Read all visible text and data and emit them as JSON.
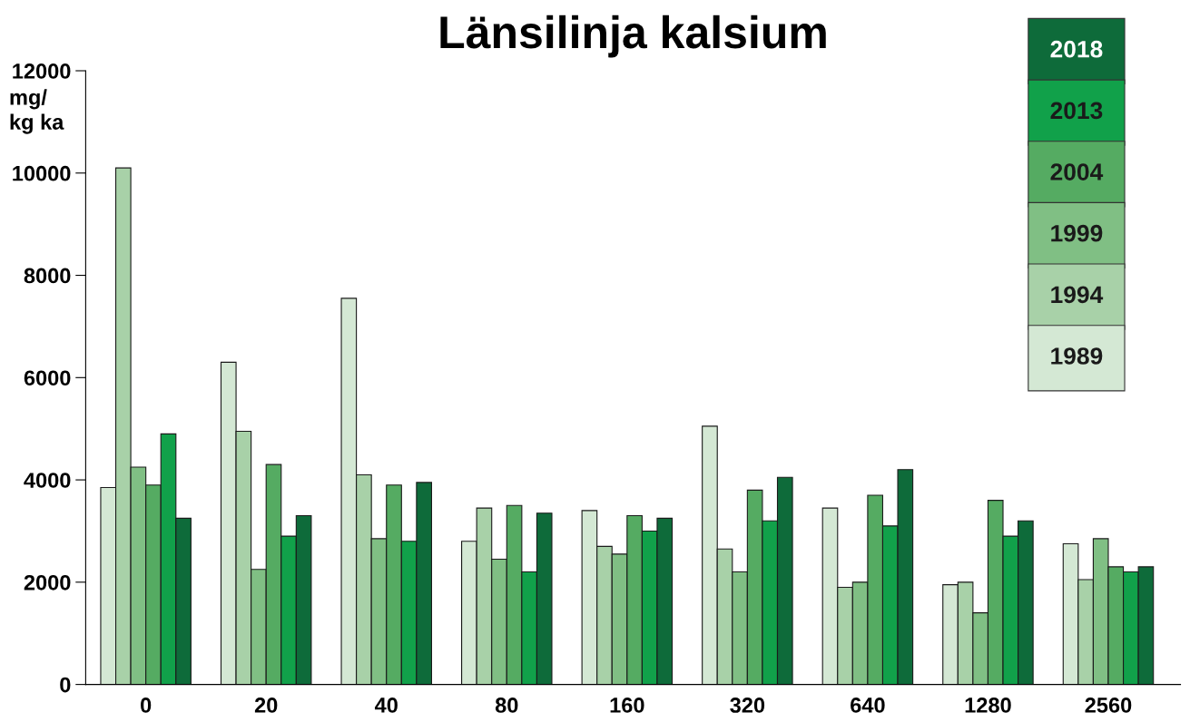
{
  "chart_data": {
    "type": "bar",
    "title": "Länsilinja kalsium",
    "ylabel": "mg/\nkg ka",
    "categories": [
      "0",
      "20",
      "40",
      "80",
      "160",
      "320",
      "640",
      "1280",
      "2560"
    ],
    "series": [
      {
        "name": "1989",
        "color": "#d4e8d4",
        "values": [
          3850,
          6300,
          7550,
          2800,
          3400,
          5050,
          3450,
          1950,
          2750
        ]
      },
      {
        "name": "1994",
        "color": "#a8d1a8",
        "values": [
          10100,
          4950,
          4100,
          3450,
          2700,
          2650,
          1900,
          2000,
          2050
        ]
      },
      {
        "name": "1999",
        "color": "#80bf84",
        "values": [
          4250,
          2250,
          2850,
          2450,
          2550,
          2200,
          2000,
          1400,
          2850
        ]
      },
      {
        "name": "2004",
        "color": "#55ab62",
        "values": [
          3900,
          4300,
          3900,
          3500,
          3300,
          3800,
          3700,
          3600,
          2300
        ]
      },
      {
        "name": "2013",
        "color": "#11a14a",
        "values": [
          4900,
          2900,
          2800,
          2200,
          3000,
          3200,
          3100,
          2900,
          2200
        ]
      },
      {
        "name": "2018",
        "color": "#0e6b3a",
        "values": [
          3250,
          3300,
          3950,
          3350,
          3250,
          4050,
          4200,
          3200,
          2300
        ]
      }
    ],
    "ylim": [
      0,
      12000
    ],
    "yticks": [
      0,
      2000,
      4000,
      6000,
      8000,
      10000,
      12000
    ],
    "grid": false,
    "legend": "top right"
  }
}
